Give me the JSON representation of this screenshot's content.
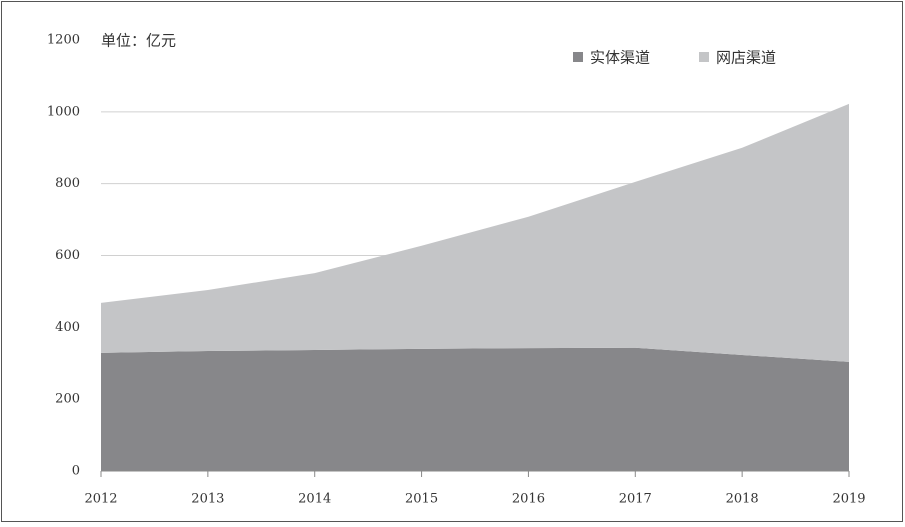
{
  "chart_data": {
    "type": "stacked_area",
    "subtitle": "单位：亿元",
    "categories": [
      "2012",
      "2013",
      "2014",
      "2015",
      "2016",
      "2017",
      "2018",
      "2019"
    ],
    "series": [
      {
        "name": "实体渠道",
        "color": "#87878a",
        "values": [
          329,
          334,
          337,
          340,
          342,
          343,
          323,
          304
        ]
      },
      {
        "name": "网店渠道",
        "color": "#c4c5c7",
        "values": [
          139,
          170,
          214,
          287,
          366,
          462,
          577,
          718
        ]
      }
    ],
    "ylim": [
      0,
      1200
    ],
    "yticks": [
      0,
      200,
      400,
      600,
      800,
      1000,
      1200
    ],
    "grid": true
  }
}
